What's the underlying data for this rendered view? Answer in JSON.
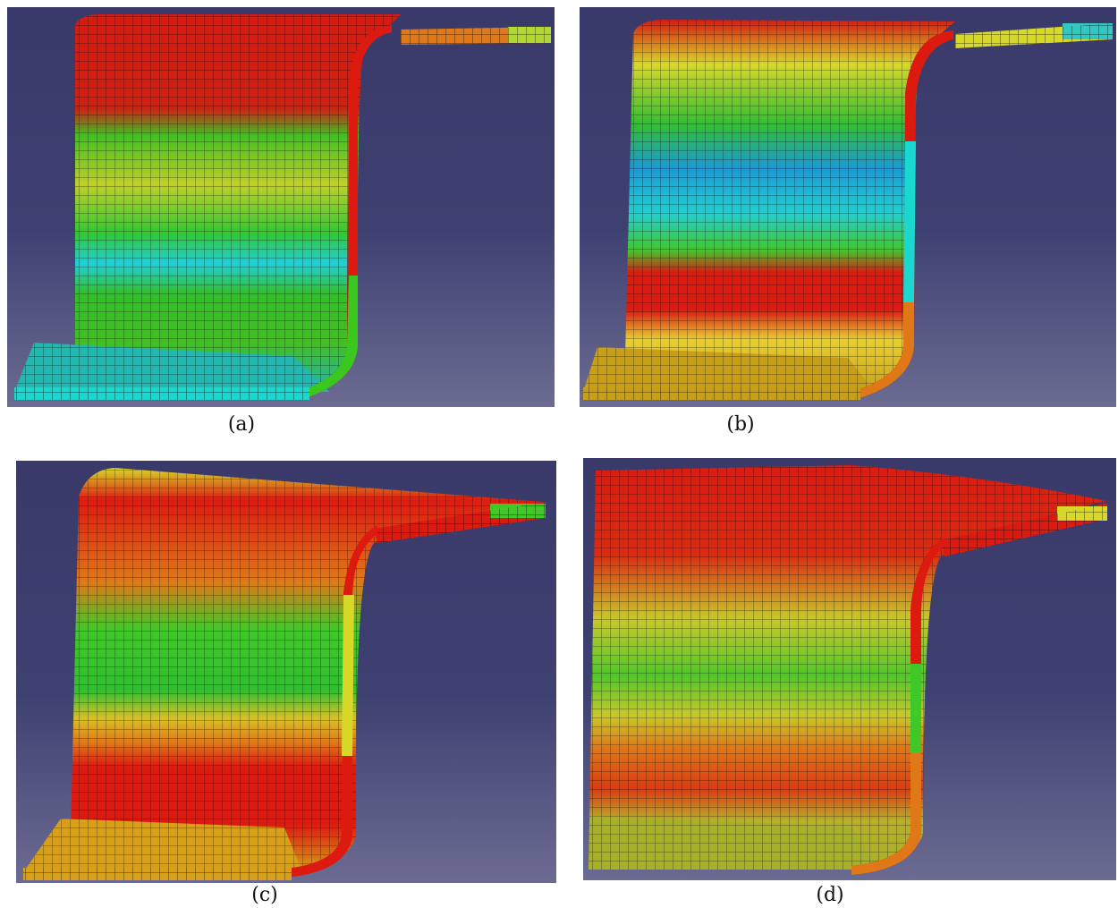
{
  "captions": {
    "a": "(a)",
    "b": "(b)",
    "c": "(c)",
    "d": "(d)"
  },
  "palette": {
    "background_top": "#3a3a6a",
    "red": "#dd1a10",
    "orange": "#e07818",
    "yellow": "#d8d828",
    "green": "#3ac81e",
    "cyan": "#1ad8d0",
    "blue": "#1a5ad8",
    "mesh_line": "#0a0a0a"
  }
}
